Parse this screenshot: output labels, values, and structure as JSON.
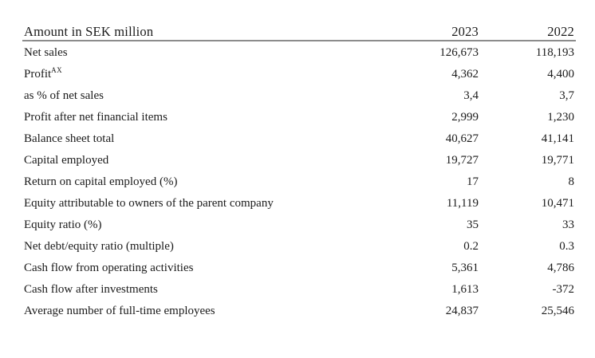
{
  "colors": {
    "background": "#ffffff",
    "text": "#1b1b1b",
    "header_rule": "#8c8c8c"
  },
  "table": {
    "header": {
      "label": "Amount in SEK million",
      "col_2023": "2023",
      "col_2022": "2022"
    },
    "rows": [
      {
        "label": "Net sales",
        "v2023": "126,673",
        "v2022": "118,193"
      },
      {
        "label": "Profit",
        "footnote": "AX",
        "v2023": "4,362",
        "v2022": "4,400"
      },
      {
        "label": "as % of net sales",
        "v2023": "3,4",
        "v2022": "3,7"
      },
      {
        "label": "Profit after net financial items",
        "v2023": "2,999",
        "v2022": "1,230"
      },
      {
        "label": "Balance sheet total",
        "v2023": "40,627",
        "v2022": "41,141"
      },
      {
        "label": "Capital employed",
        "v2023": "19,727",
        "v2022": "19,771"
      },
      {
        "label": "Return on capital employed (%)",
        "v2023": "17",
        "v2022": "8"
      },
      {
        "label": "Equity attributable to owners of the parent company",
        "v2023": "11,119",
        "v2022": "10,471"
      },
      {
        "label": "Equity ratio (%)",
        "v2023": "35",
        "v2022": "33"
      },
      {
        "label": "Net debt/equity ratio (multiple)",
        "v2023": "0.2",
        "v2022": "0.3"
      },
      {
        "label": "Cash flow from operating activities",
        "v2023": "5,361",
        "v2022": "4,786"
      },
      {
        "label": "Cash flow after investments",
        "v2023": "1,613",
        "v2022": "-372"
      },
      {
        "label": "Average number of full-time employees",
        "v2023": "24,837",
        "v2022": "25,546"
      }
    ]
  }
}
